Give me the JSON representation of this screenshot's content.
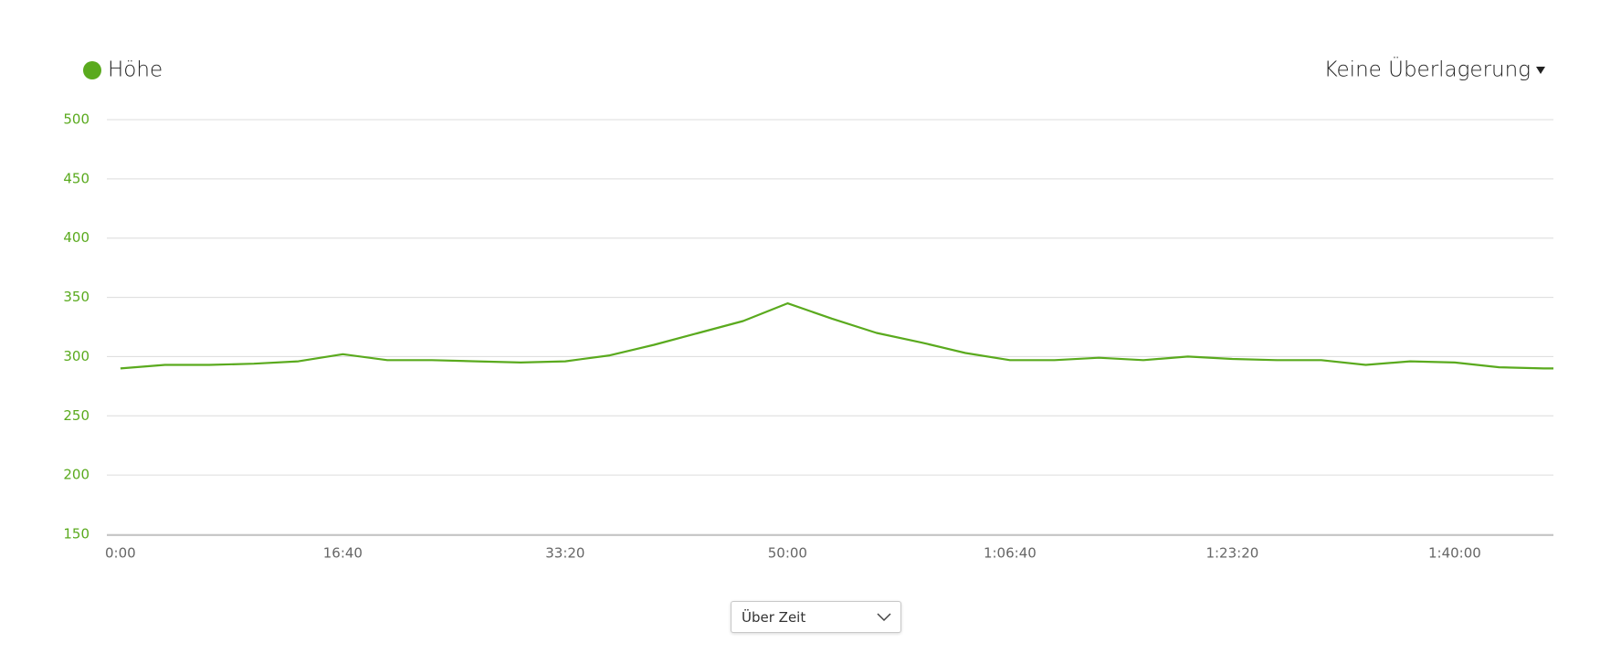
{
  "chart_data": {
    "type": "line",
    "x": [
      0,
      200,
      400,
      600,
      800,
      1000,
      1200,
      1400,
      1600,
      1800,
      2000,
      2200,
      2400,
      2600,
      2800,
      3000,
      3200,
      3400,
      3600,
      3800,
      4000,
      4200,
      4400,
      4600,
      4800,
      5000,
      5200,
      5400,
      5600,
      5800,
      6000,
      6200,
      6400,
      6444
    ],
    "series": [
      {
        "name": "Höhe",
        "color": "#5aaa1e",
        "values": [
          290,
          293,
          293,
          294,
          296,
          302,
          297,
          297,
          296,
          295,
          296,
          301,
          310,
          320,
          330,
          345,
          332,
          320,
          312,
          303,
          297,
          297,
          299,
          297,
          300,
          298,
          297,
          297,
          293,
          296,
          295,
          291,
          290,
          290
        ]
      }
    ],
    "xlim": [
      -61,
      6444
    ],
    "xticks": [
      {
        "value": 0,
        "label": "0:00"
      },
      {
        "value": 1000,
        "label": "16:40"
      },
      {
        "value": 2000,
        "label": "33:20"
      },
      {
        "value": 3000,
        "label": "50:00"
      },
      {
        "value": 4000,
        "label": "1:06:40"
      },
      {
        "value": 5000,
        "label": "1:23:20"
      },
      {
        "value": 6000,
        "label": "1:40:00"
      }
    ],
    "ylim": [
      150,
      500
    ],
    "yticks": [
      150,
      200,
      250,
      300,
      350,
      400,
      450,
      500
    ],
    "grid": true
  },
  "controls": {
    "overlay": "Keine Überlagerung",
    "x_mode": "Über Zeit"
  }
}
